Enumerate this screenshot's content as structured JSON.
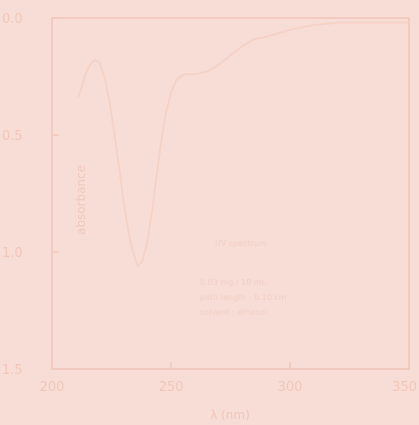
{
  "chart_data": {
    "type": "line",
    "xlabel": "λ (nm)",
    "ylabel": "absorbance",
    "xlim": [
      200,
      350
    ],
    "ylim": [
      1.5,
      0.0
    ],
    "y_inverted": true,
    "x_ticks": [
      "200",
      "250",
      "300",
      "350"
    ],
    "x_tick_values": [
      200,
      250,
      300,
      350
    ],
    "y_ticks": [
      "0.0",
      "0.5",
      "1.0",
      "1.5"
    ],
    "y_tick_values": [
      0.0,
      0.5,
      1.0,
      1.5
    ],
    "grid": false,
    "series": [
      {
        "x": [
          211,
          212,
          214,
          216,
          218,
          220,
          222,
          224,
          226,
          228,
          230,
          232,
          234,
          236,
          238,
          240,
          242,
          244,
          246,
          248,
          250,
          252,
          254,
          256,
          258,
          260,
          265,
          270,
          275,
          280,
          285,
          290,
          300,
          310,
          320,
          330,
          340,
          350
        ],
        "y": [
          0.34,
          0.31,
          0.24,
          0.2,
          0.18,
          0.19,
          0.25,
          0.35,
          0.48,
          0.62,
          0.78,
          0.91,
          1.0,
          1.06,
          1.04,
          0.96,
          0.83,
          0.67,
          0.52,
          0.4,
          0.32,
          0.27,
          0.25,
          0.24,
          0.24,
          0.24,
          0.23,
          0.2,
          0.16,
          0.12,
          0.09,
          0.08,
          0.05,
          0.03,
          0.02,
          0.02,
          0.02,
          0.02
        ]
      }
    ],
    "annotations": {
      "title": "UV spectrum",
      "line1": "0.03 mg / 10 mL",
      "line2": "path length : 0.10 cm",
      "line3": "solvent : ethanol"
    }
  },
  "colors": {
    "background": "#f7ddd6",
    "axis": "#f1c7ba",
    "curve": "#f5d1c6"
  }
}
